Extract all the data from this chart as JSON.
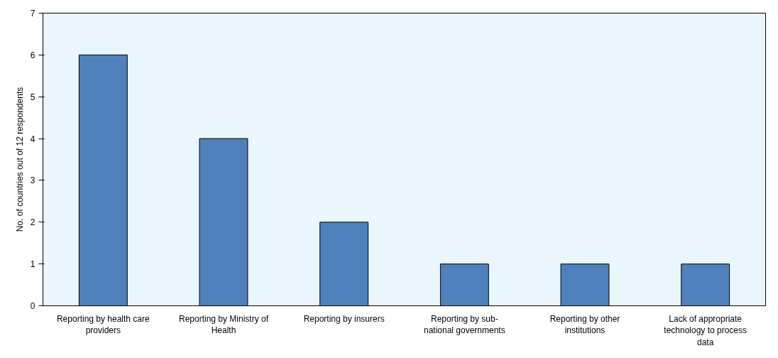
{
  "chart_data": {
    "type": "bar",
    "ylabel": "No. of countries out of 12 respondents",
    "categories": [
      "Reporting by health care providers",
      "Reporting by Ministry of Health",
      "Reporting by insurers",
      "Reporting by sub-national governments",
      "Reporting by other institutions",
      "Lack of appropriate technology to process data"
    ],
    "values": [
      6,
      4,
      2,
      1,
      1,
      1
    ],
    "color": "#4f81bd",
    "ylim": [
      0,
      7
    ],
    "yticks": [
      0,
      1,
      2,
      3,
      4,
      5,
      6,
      7
    ],
    "grid": false
  }
}
